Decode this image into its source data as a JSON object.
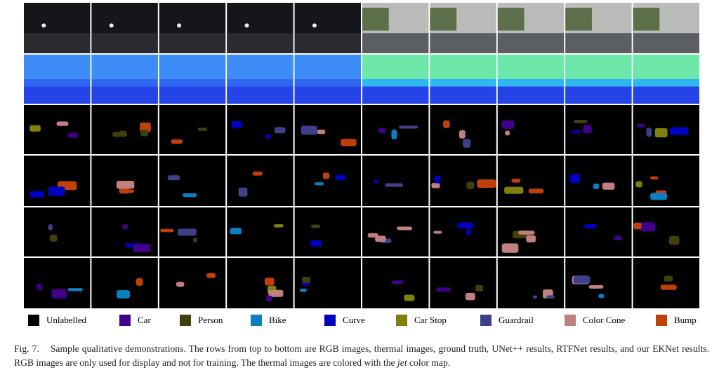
{
  "legend": [
    {
      "label": "Unlabelled",
      "color": "#000000"
    },
    {
      "label": "Car",
      "color": "#40008a"
    },
    {
      "label": "Person",
      "color": "#40400a"
    },
    {
      "label": "Bike",
      "color": "#0a80c0"
    },
    {
      "label": "Curve",
      "color": "#0000c0"
    },
    {
      "label": "Car Stop",
      "color": "#80800a"
    },
    {
      "label": "Guardrail",
      "color": "#40408a"
    },
    {
      "label": "Color Cone",
      "color": "#c08080"
    },
    {
      "label": "Bump",
      "color": "#c0400a"
    }
  ],
  "caption": {
    "number": "Fig. 7.",
    "text": "Sample qualitative demonstrations. The rows from top to bottom are RGB images, thermal images, ground truth, UNet++ results, RTFNet results, and our EKNet results. RGB images are only used for display and not for training. The thermal images are colored with the",
    "emphasis": "jet",
    "end": "color map."
  }
}
